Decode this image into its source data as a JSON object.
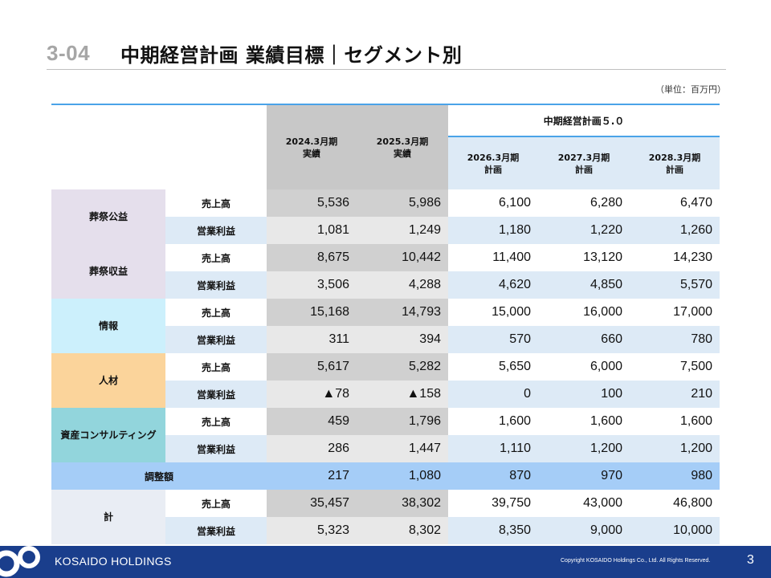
{
  "header": {
    "number": "3-04",
    "title": "中期経営計画 業績目標｜セグメント別",
    "unit_note": "（単位：百万円）"
  },
  "table": {
    "plan_group": "中期経営計画５.０",
    "columns": [
      {
        "line1": "2024.3月期",
        "line2": "実績"
      },
      {
        "line1": "2025.3月期",
        "line2": "実績"
      },
      {
        "line1": "2026.3月期",
        "line2": "計画"
      },
      {
        "line1": "2027.3月期",
        "line2": "計画"
      },
      {
        "line1": "2028.3月期",
        "line2": "計画"
      }
    ],
    "segments": [
      {
        "name": "葬祭公益",
        "rows": [
          {
            "item": "売上高",
            "values": [
              "5,536",
              "5,986",
              "6,100",
              "6,280",
              "6,470"
            ]
          },
          {
            "item": "営業利益",
            "values": [
              "1,081",
              "1,249",
              "1,180",
              "1,220",
              "1,260"
            ]
          }
        ]
      },
      {
        "name": "葬祭収益",
        "rows": [
          {
            "item": "売上高",
            "values": [
              "8,675",
              "10,442",
              "11,400",
              "13,120",
              "14,230"
            ]
          },
          {
            "item": "営業利益",
            "values": [
              "3,506",
              "4,288",
              "4,620",
              "4,850",
              "5,570"
            ]
          }
        ]
      },
      {
        "name": "情報",
        "rows": [
          {
            "item": "売上高",
            "values": [
              "15,168",
              "14,793",
              "15,000",
              "16,000",
              "17,000"
            ]
          },
          {
            "item": "営業利益",
            "values": [
              "311",
              "394",
              "570",
              "660",
              "780"
            ]
          }
        ]
      },
      {
        "name": "人材",
        "rows": [
          {
            "item": "売上高",
            "values": [
              "5,617",
              "5,282",
              "5,650",
              "6,000",
              "7,500"
            ]
          },
          {
            "item": "営業利益",
            "values": [
              "▲78",
              "▲158",
              "0",
              "100",
              "210"
            ]
          }
        ]
      },
      {
        "name": "資産コンサルティング",
        "rows": [
          {
            "item": "売上高",
            "values": [
              "459",
              "1,796",
              "1,600",
              "1,600",
              "1,600"
            ]
          },
          {
            "item": "営業利益",
            "values": [
              "286",
              "1,447",
              "1,110",
              "1,200",
              "1,200"
            ]
          }
        ]
      }
    ],
    "adjustment": {
      "name": "調整額",
      "values": [
        "217",
        "1,080",
        "870",
        "970",
        "980"
      ]
    },
    "total": {
      "name": "計",
      "rows": [
        {
          "item": "売上高",
          "values": [
            "35,457",
            "38,302",
            "39,750",
            "43,000",
            "46,800"
          ]
        },
        {
          "item": "営業利益",
          "values": [
            "5,323",
            "8,302",
            "8,350",
            "9,000",
            "10,000"
          ]
        }
      ]
    }
  },
  "footer": {
    "brand": "KOSAIDO HOLDINGS",
    "copyright": "Copyright  KOSAIDO Holdings Co., Ltd. All Rights Reserved.",
    "page_number": "3"
  },
  "colors": {
    "accent_line": "#4aa3e8",
    "footer_bg": "#1a3e8c",
    "sousai": "#e5dfec",
    "info": "#ccf0fc",
    "jinzai": "#fbd49b",
    "consulting": "#92d5dc",
    "adjustment": "#a5cdf7",
    "total": "#e9edf4"
  },
  "icons": {
    "logo": "kosaido-logo-icon"
  }
}
